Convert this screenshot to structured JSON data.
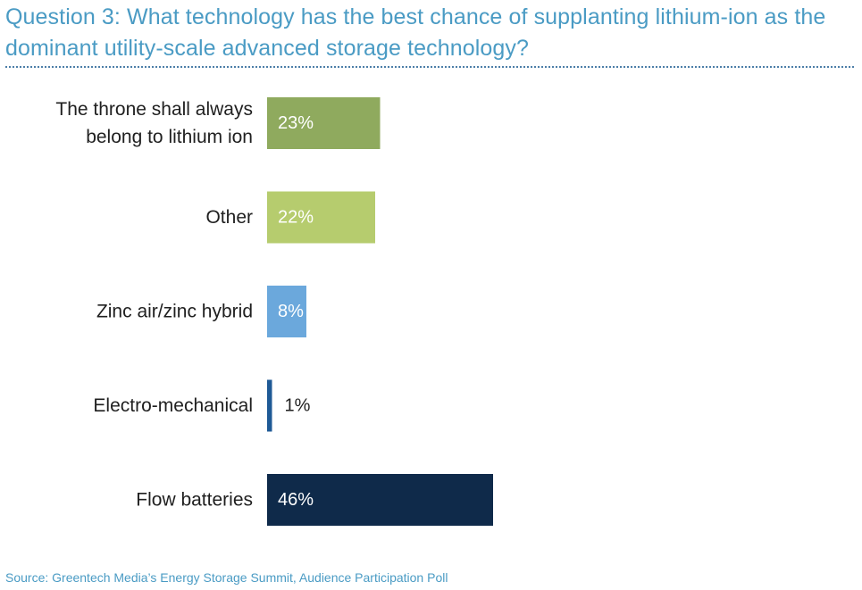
{
  "title": "Question 3: What technology has the best chance of supplanting lithium-ion as the dominant utility-scale advanced storage technology?",
  "source": "Source: Greentech Media’s Energy Storage Summit, Audience Participation Poll",
  "colors": {
    "title": "#4a9bc4",
    "source": "#4a9bc4",
    "divider": "#4c7ea8",
    "label": "#1f1f1f"
  },
  "chart_data": {
    "type": "bar",
    "orientation": "horizontal",
    "categories": [
      "The throne shall always belong to lithium ion",
      "Other",
      "Zinc air/zinc hybrid",
      "Electro-mechanical",
      "Flow batteries"
    ],
    "values": [
      23,
      22,
      8,
      1,
      46
    ],
    "value_labels": [
      "23%",
      "22%",
      "8%",
      "1%",
      "46%"
    ],
    "colors": [
      "#8faa5e",
      "#b6cc6e",
      "#6ba8dc",
      "#1f5a96",
      "#0f2a4a"
    ],
    "xlim": [
      0,
      46
    ],
    "grid": false,
    "legend": "none"
  }
}
